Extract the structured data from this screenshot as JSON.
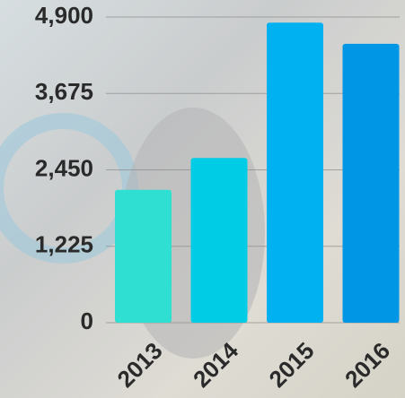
{
  "chart_data": {
    "type": "bar",
    "categories": [
      "2013",
      "2014",
      "2015",
      "2016"
    ],
    "values": [
      2130,
      2640,
      4810,
      4470
    ],
    "colors": [
      "#2fe0d2",
      "#00cce6",
      "#00b1f2",
      "#0096e6"
    ],
    "ylim": [
      0,
      4900
    ],
    "yticks": [
      0,
      {
        "value": 1225,
        "label": "1,225"
      },
      {
        "value": 2450,
        "label": "2,450"
      },
      {
        "value": 3675,
        "label": "3,675"
      },
      {
        "value": 4900,
        "label": "4,900"
      }
    ],
    "grid": true
  }
}
